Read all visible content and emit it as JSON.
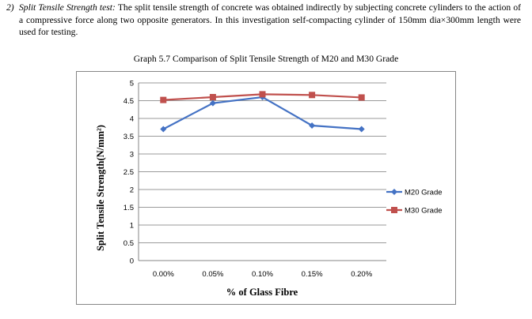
{
  "paragraph": {
    "number": "2)",
    "lead": "Split Tensile Strength test:",
    "text": " The split tensile strength of concrete was obtained indirectly by subjecting concrete cylinders to the action of a compressive force along two opposite generators. In this investigation self-compacting cylinder of 150mm dia×300mm length were used for testing."
  },
  "chart_data": {
    "type": "line",
    "title": "Graph 5.7 Comparison of Split Tensile Strength of M20 and M30 Grade",
    "xlabel": "% of Glass Fibre",
    "ylabel": "Split Tensile Strength(N/mm²)",
    "categories": [
      "0.00%",
      "0.05%",
      "0.10%",
      "0.15%",
      "0.20%"
    ],
    "ylim": [
      0,
      5
    ],
    "yticks": [
      "0",
      "0.5",
      "1",
      "1.5",
      "2",
      "2.5",
      "3",
      "3.5",
      "4",
      "4.5",
      "5"
    ],
    "grid": true,
    "legend_position": "right",
    "series": [
      {
        "name": "M20 Grade",
        "color": "#4472C4",
        "marker": "diamond",
        "values": [
          3.7,
          4.43,
          4.6,
          3.8,
          3.7
        ]
      },
      {
        "name": "M30 Grade",
        "color": "#C0504D",
        "marker": "square",
        "values": [
          4.52,
          4.6,
          4.68,
          4.66,
          4.59
        ]
      }
    ]
  }
}
